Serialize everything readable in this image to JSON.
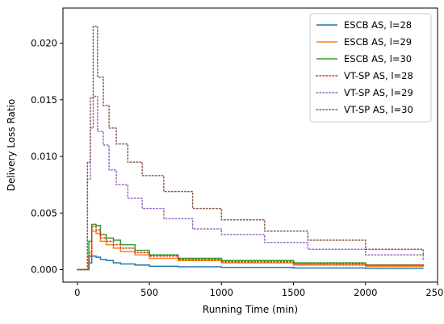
{
  "chart_data": {
    "type": "line",
    "title": "",
    "xlabel": "Running Time (min)",
    "ylabel": "Delivery Loss Ratio",
    "xlim": [
      -100,
      2500
    ],
    "ylim": [
      -0.0011,
      0.0231
    ],
    "xticks": [
      0,
      500,
      1000,
      1500,
      2000,
      2500
    ],
    "xtick_labels": [
      "0",
      "500",
      "1000",
      "1500",
      "2000",
      "2500"
    ],
    "yticks": [
      0.0,
      0.005,
      0.01,
      0.015,
      0.02
    ],
    "ytick_labels": [
      "0.000",
      "0.005",
      "0.010",
      "0.015",
      "0.020"
    ],
    "grid": false,
    "legend_position": "top-right",
    "series": [
      {
        "name": "ESCB AS, l=28",
        "color": "#1f77b4",
        "style": "solid",
        "points": [
          [
            0,
            0
          ],
          [
            60,
            0
          ],
          [
            80,
            0.0006
          ],
          [
            100,
            0.0012
          ],
          [
            130,
            0.0011
          ],
          [
            160,
            0.0009
          ],
          [
            200,
            0.0008
          ],
          [
            250,
            0.0006
          ],
          [
            300,
            0.0005
          ],
          [
            400,
            0.0004
          ],
          [
            500,
            0.0003
          ],
          [
            700,
            0.00025
          ],
          [
            1000,
            0.0002
          ],
          [
            1500,
            0.00015
          ],
          [
            2000,
            0.00012
          ],
          [
            2400,
            0.0001
          ]
        ]
      },
      {
        "name": "ESCB AS, l=29",
        "color": "#ff7f0e",
        "style": "solid",
        "points": [
          [
            0,
            0
          ],
          [
            60,
            0
          ],
          [
            80,
            0.0015
          ],
          [
            100,
            0.0034
          ],
          [
            130,
            0.0032
          ],
          [
            160,
            0.0025
          ],
          [
            200,
            0.0022
          ],
          [
            250,
            0.0019
          ],
          [
            300,
            0.0016
          ],
          [
            400,
            0.0013
          ],
          [
            500,
            0.001
          ],
          [
            700,
            0.0008
          ],
          [
            1000,
            0.0006
          ],
          [
            1500,
            0.0004
          ],
          [
            2000,
            0.0003
          ],
          [
            2400,
            0.00025
          ]
        ]
      },
      {
        "name": "ESCB AS, l=30",
        "color": "#2ca02c",
        "style": "solid",
        "points": [
          [
            0,
            0
          ],
          [
            60,
            0
          ],
          [
            80,
            0.0025
          ],
          [
            100,
            0.004
          ],
          [
            130,
            0.0039
          ],
          [
            160,
            0.0031
          ],
          [
            200,
            0.0028
          ],
          [
            250,
            0.0026
          ],
          [
            300,
            0.0022
          ],
          [
            400,
            0.0017
          ],
          [
            500,
            0.0013
          ],
          [
            700,
            0.001
          ],
          [
            1000,
            0.0008
          ],
          [
            1500,
            0.0006
          ],
          [
            2000,
            0.0004
          ],
          [
            2400,
            0.0003
          ]
        ]
      },
      {
        "name": "VT-SP AS, l=28",
        "color": "#d62728",
        "style": "dotted",
        "points": [
          [
            0,
            0
          ],
          [
            60,
            0
          ],
          [
            80,
            0.0012
          ],
          [
            100,
            0.0038
          ],
          [
            130,
            0.0035
          ],
          [
            160,
            0.0028
          ],
          [
            200,
            0.0025
          ],
          [
            250,
            0.0022
          ],
          [
            300,
            0.0019
          ],
          [
            400,
            0.0015
          ],
          [
            500,
            0.0012
          ],
          [
            700,
            0.0009
          ],
          [
            1000,
            0.0007
          ],
          [
            1500,
            0.0005
          ],
          [
            2000,
            0.0004
          ],
          [
            2400,
            0.0003
          ]
        ]
      },
      {
        "name": "VT-SP AS, l=29",
        "color": "#9467bd",
        "style": "dotted",
        "points": [
          [
            0,
            0
          ],
          [
            50,
            0
          ],
          [
            70,
            0.008
          ],
          [
            90,
            0.0125
          ],
          [
            110,
            0.0153
          ],
          [
            140,
            0.0122
          ],
          [
            180,
            0.011
          ],
          [
            220,
            0.0088
          ],
          [
            270,
            0.0075
          ],
          [
            350,
            0.0063
          ],
          [
            450,
            0.0054
          ],
          [
            600,
            0.0045
          ],
          [
            800,
            0.0036
          ],
          [
            1000,
            0.0031
          ],
          [
            1300,
            0.0024
          ],
          [
            1600,
            0.0018
          ],
          [
            2000,
            0.0013
          ],
          [
            2400,
            0.0009
          ]
        ]
      },
      {
        "name": "VT-SP AS, l=30",
        "color": "#8c564b",
        "style": "dotted",
        "points": [
          [
            0,
            0
          ],
          [
            50,
            0
          ],
          [
            70,
            0.0095
          ],
          [
            90,
            0.0152
          ],
          [
            110,
            0.0215
          ],
          [
            140,
            0.017
          ],
          [
            180,
            0.0145
          ],
          [
            220,
            0.0125
          ],
          [
            270,
            0.0111
          ],
          [
            350,
            0.0095
          ],
          [
            450,
            0.0083
          ],
          [
            600,
            0.0069
          ],
          [
            800,
            0.0054
          ],
          [
            1000,
            0.0044
          ],
          [
            1300,
            0.0034
          ],
          [
            1600,
            0.0026
          ],
          [
            2000,
            0.0018
          ],
          [
            2400,
            0.0013
          ]
        ]
      }
    ]
  }
}
